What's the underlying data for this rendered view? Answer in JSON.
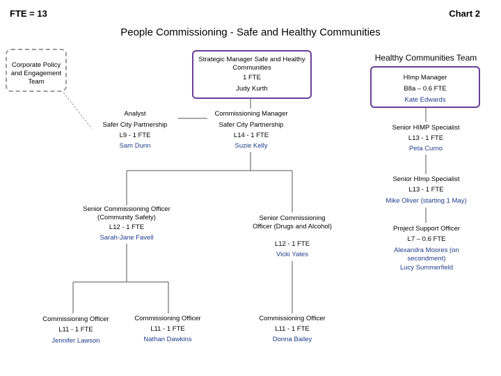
{
  "header": {
    "fte": "FTE = 13",
    "chart": "Chart 2"
  },
  "title": "People Commissioning - Safe and Healthy Communities",
  "colors": {
    "blue_text": "#1f3c8c",
    "purple_border": "#6a3d9a",
    "dashed_border": "#9a9a9a",
    "lines": "#555555"
  },
  "corporate": {
    "label": "Corporate Policy and Engagement Team"
  },
  "strategic": {
    "role": "Strategic Manager Safe and Healthy Communities",
    "fte": "1 FTE",
    "name": "Judy Kurth"
  },
  "hc_team": {
    "title": "Healthy Communities Team",
    "manager": {
      "role": "HImp Manager",
      "grade": "B8a – 0.6 FTE",
      "name": "Kate Edwards"
    },
    "senior_himp": {
      "role": "Senior HIMP Specialist",
      "grade": "L13 - 1 FTE",
      "name": "Peta Curno"
    },
    "senior_himp2": {
      "role": "Senior HImp Specialist",
      "grade": "L13 - 1 FTE",
      "name": "Mike Oliver (starting 1 May)"
    },
    "project_support": {
      "role": "Project Support Officer",
      "grade": "L7 – 0.6 FTE",
      "name1": "Alexandra Moores (on secondment)",
      "name2": "Lucy Summerfield"
    }
  },
  "analyst": {
    "role": "Analyst",
    "team": "Safer City Partnership",
    "grade": "L9 - 1 FTE",
    "name": "Sam Dunn"
  },
  "comm_manager": {
    "role": "Commissioning Manager",
    "team": "Safer City Partnership",
    "grade": "L14 - 1 FTE",
    "name": "Suzie Kelly"
  },
  "sco_community": {
    "role": "Senior Commissioning Officer (Community Safety)",
    "grade": "L12 - 1 FTE",
    "name": "Sarah-Jane Favell"
  },
  "sco_drugs": {
    "role": "Senior Commissioning Officer (Drugs and Alcohol)",
    "grade": "L12 - 1 FTE",
    "name": "Vicki Yates"
  },
  "officers": [
    {
      "role": "Commissioning Officer",
      "grade": "L11 - 1 FTE",
      "name": "Jennifer Lawson"
    },
    {
      "role": "Commissioning Officer",
      "grade": "L11 - 1 FTE",
      "name": "Nathan Dawkins"
    },
    {
      "role": "Commissioning Officer",
      "grade": "L11 - 1 FTE",
      "name": "Donna Bailey"
    }
  ]
}
